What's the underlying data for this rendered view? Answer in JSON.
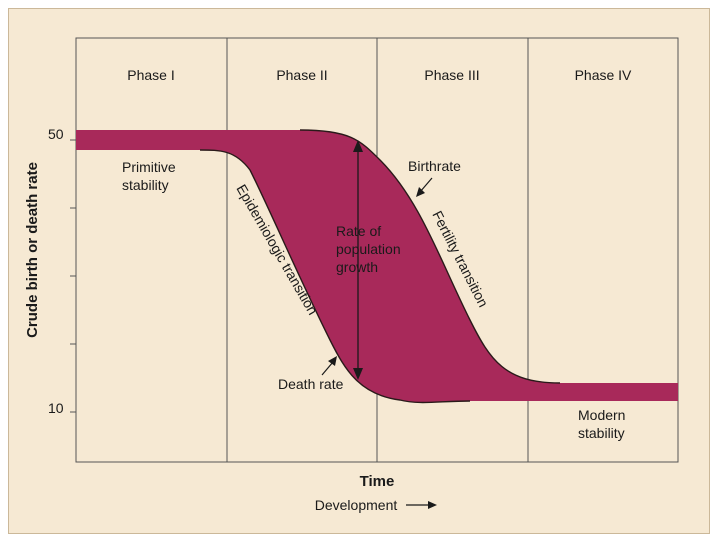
{
  "diagram": {
    "phases": [
      "Phase I",
      "Phase II",
      "Phase III",
      "Phase IV"
    ],
    "y_axis_title": "Crude birth or death rate",
    "y_ticks": [
      "50",
      "10"
    ],
    "x_axis_title": "Time",
    "x_axis_subtitle": "Development",
    "labels": {
      "primitive_line1": "Primitive",
      "primitive_line2": "stability",
      "epidemiologic": "Epidemiologic transition",
      "rate_line1": "Rate of",
      "rate_line2": "population",
      "rate_line3": "growth",
      "birthrate": "Birthrate",
      "fertility": "Fertility transition",
      "death_rate": "Death rate",
      "modern_line1": "Modern",
      "modern_line2": "stability"
    },
    "colors": {
      "band": "#a8295a",
      "background": "#f6e9d3",
      "line": "#2a1a1a"
    }
  }
}
